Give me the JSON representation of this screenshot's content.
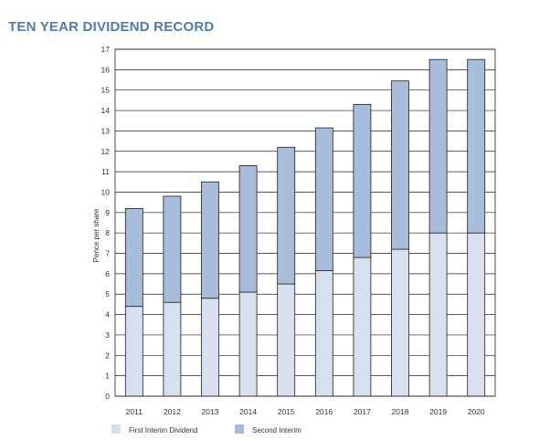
{
  "title": "TEN YEAR DIVIDEND RECORD",
  "colors": {
    "title": "#4f7cae",
    "first_interim": "#d8e0f0",
    "second_interim": "#a8bcdb",
    "grid": "#222222"
  },
  "chart_data": {
    "type": "bar",
    "stacked": true,
    "title": "",
    "xlabel": "",
    "ylabel": "Pence per share",
    "ylim": [
      0,
      17
    ],
    "yticks": [
      0,
      1,
      2,
      3,
      4,
      5,
      6,
      7,
      8,
      9,
      10,
      11,
      12,
      13,
      14,
      15,
      16,
      17
    ],
    "grid": true,
    "legend_position": "bottom",
    "categories": [
      "2011",
      "2012",
      "2013",
      "2014",
      "2015",
      "2016",
      "2017",
      "2018",
      "2019",
      "2020"
    ],
    "series": [
      {
        "name": "First Interim Dividend",
        "values": [
          4.4,
          4.6,
          4.8,
          5.1,
          5.5,
          6.15,
          6.8,
          7.2,
          8.0,
          8.0
        ]
      },
      {
        "name": "Second Interim",
        "values": [
          4.8,
          5.2,
          5.7,
          6.2,
          6.7,
          7.0,
          7.5,
          8.25,
          8.5,
          8.5
        ]
      }
    ]
  }
}
